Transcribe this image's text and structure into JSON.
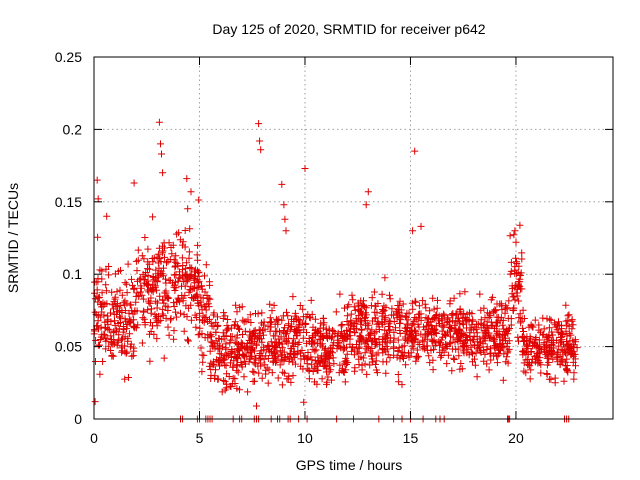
{
  "chart_data": {
    "type": "scatter",
    "title": "Day 125 of 2020, SRMTID for receiver p642",
    "xlabel": "GPS time / hours",
    "ylabel": "SRMTID / TECUs",
    "xlim": [
      0,
      24.6
    ],
    "ylim": [
      0,
      0.25
    ],
    "x_ticks": [
      0,
      5,
      10,
      15,
      20
    ],
    "x_tick_labels": [
      "0",
      "5",
      "10",
      "15",
      "20"
    ],
    "y_ticks": [
      0,
      0.05,
      0.1,
      0.15,
      0.2,
      0.25
    ],
    "y_tick_labels": [
      "0",
      "0.05",
      "0.1",
      "0.15",
      "0.2",
      "0.25"
    ],
    "grid": true,
    "marker": "+",
    "series": [
      {
        "name": "SRMTID",
        "color": "#e00000",
        "segments": [
          {
            "x_start": 0.0,
            "x_end": 0.5,
            "mean": 0.075,
            "spread": 0.035
          },
          {
            "x_start": 0.5,
            "x_end": 2.0,
            "mean": 0.07,
            "spread": 0.03
          },
          {
            "x_start": 2.0,
            "x_end": 3.5,
            "mean": 0.09,
            "spread": 0.035
          },
          {
            "x_start": 3.5,
            "x_end": 5.0,
            "mean": 0.095,
            "spread": 0.035
          },
          {
            "x_start": 5.0,
            "x_end": 5.5,
            "mean": 0.075,
            "spread": 0.03
          },
          {
            "x_start": 5.5,
            "x_end": 8.5,
            "mean": 0.05,
            "spread": 0.025
          },
          {
            "x_start": 8.5,
            "x_end": 12.0,
            "mean": 0.05,
            "spread": 0.022
          },
          {
            "x_start": 12.0,
            "x_end": 15.0,
            "mean": 0.06,
            "spread": 0.025
          },
          {
            "x_start": 15.0,
            "x_end": 19.7,
            "mean": 0.06,
            "spread": 0.02
          },
          {
            "x_start": 19.7,
            "x_end": 20.3,
            "mean": 0.09,
            "spread": 0.03
          },
          {
            "x_start": 20.3,
            "x_end": 22.9,
            "mean": 0.05,
            "spread": 0.018
          }
        ],
        "outliers": [
          {
            "x": 0.05,
            "y": 0.012
          },
          {
            "x": 0.15,
            "y": 0.165
          },
          {
            "x": 0.2,
            "y": 0.152
          },
          {
            "x": 0.6,
            "y": 0.14
          },
          {
            "x": 1.9,
            "y": 0.163
          },
          {
            "x": 3.1,
            "y": 0.205
          },
          {
            "x": 3.15,
            "y": 0.19
          },
          {
            "x": 3.2,
            "y": 0.183
          },
          {
            "x": 3.25,
            "y": 0.17
          },
          {
            "x": 4.4,
            "y": 0.166
          },
          {
            "x": 4.6,
            "y": 0.157
          },
          {
            "x": 7.8,
            "y": 0.204
          },
          {
            "x": 7.85,
            "y": 0.192
          },
          {
            "x": 7.9,
            "y": 0.186
          },
          {
            "x": 7.7,
            "y": 0.009
          },
          {
            "x": 8.9,
            "y": 0.162
          },
          {
            "x": 9.0,
            "y": 0.148
          },
          {
            "x": 9.05,
            "y": 0.138
          },
          {
            "x": 9.1,
            "y": 0.13
          },
          {
            "x": 10.0,
            "y": 0.173
          },
          {
            "x": 13.0,
            "y": 0.157
          },
          {
            "x": 12.9,
            "y": 0.148
          },
          {
            "x": 15.2,
            "y": 0.185
          },
          {
            "x": 15.1,
            "y": 0.13
          },
          {
            "x": 15.5,
            "y": 0.133
          },
          {
            "x": 19.95,
            "y": 0.13
          },
          {
            "x": 20.0,
            "y": 0.122
          }
        ],
        "zero_values_x": [
          4.1,
          4.2,
          4.9,
          5.0,
          5.3,
          5.4,
          5.5,
          5.6,
          6.6,
          6.9,
          7.0,
          7.6,
          7.7,
          7.8,
          8.4,
          8.7,
          8.8,
          9.2,
          9.3,
          9.7,
          10.1,
          11.5,
          12.3,
          13.5,
          14.2,
          14.6,
          15.0,
          15.6,
          16.2,
          16.4,
          16.6,
          19.6,
          19.65,
          19.7,
          22.3,
          22.4,
          22.5
        ]
      }
    ]
  }
}
